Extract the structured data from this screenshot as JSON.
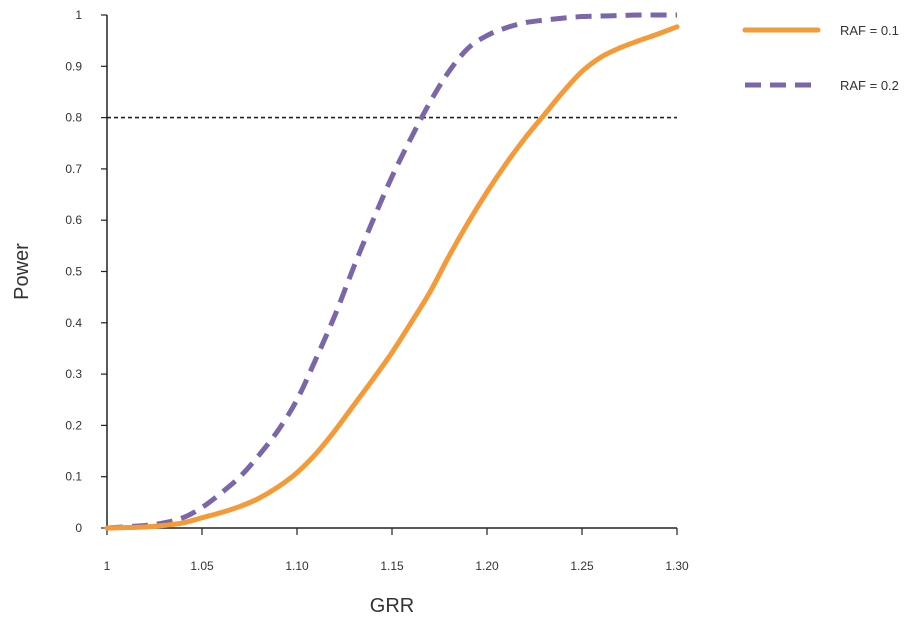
{
  "chart_data": {
    "type": "line",
    "xlabel": "GRR",
    "ylabel": "Power",
    "xlim": [
      1.0,
      1.3
    ],
    "ylim": [
      0,
      1
    ],
    "x_ticks": [
      {
        "value": 1.0,
        "label": "1"
      },
      {
        "value": 1.05,
        "label": "1.05"
      },
      {
        "value": 1.1,
        "label": "1.10"
      },
      {
        "value": 1.15,
        "label": "1.15"
      },
      {
        "value": 1.2,
        "label": "1.20"
      },
      {
        "value": 1.25,
        "label": "1.25"
      },
      {
        "value": 1.3,
        "label": "1.30"
      }
    ],
    "y_ticks": [
      {
        "value": 0,
        "label": "0"
      },
      {
        "value": 0.1,
        "label": "0.1"
      },
      {
        "value": 0.2,
        "label": "0.2"
      },
      {
        "value": 0.3,
        "label": "0.3"
      },
      {
        "value": 0.4,
        "label": "0.4"
      },
      {
        "value": 0.5,
        "label": "0.5"
      },
      {
        "value": 0.6,
        "label": "0.6"
      },
      {
        "value": 0.7,
        "label": "0.7"
      },
      {
        "value": 0.8,
        "label": "0.8"
      },
      {
        "value": 0.9,
        "label": "0.9"
      },
      {
        "value": 1,
        "label": "1"
      }
    ],
    "reference_line": {
      "y": 0.8,
      "style": "dotted",
      "color": "#222222"
    },
    "grid": false,
    "legend_position": "top-right",
    "series": [
      {
        "name": "RAF = 0.1",
        "color": "#F59A38",
        "dash": "solid",
        "x": [
          1.0,
          1.02,
          1.03,
          1.04,
          1.05,
          1.06,
          1.07,
          1.08,
          1.09,
          1.1,
          1.11,
          1.12,
          1.13,
          1.14,
          1.15,
          1.16,
          1.17,
          1.18,
          1.19,
          1.2,
          1.21,
          1.22,
          1.23,
          1.24,
          1.25,
          1.26,
          1.27,
          1.28,
          1.29,
          1.3
        ],
        "y": [
          0.0,
          0.002,
          0.005,
          0.01,
          0.02,
          0.03,
          0.042,
          0.058,
          0.08,
          0.108,
          0.145,
          0.19,
          0.24,
          0.29,
          0.342,
          0.4,
          0.46,
          0.53,
          0.595,
          0.655,
          0.71,
          0.76,
          0.805,
          0.85,
          0.89,
          0.918,
          0.936,
          0.95,
          0.963,
          0.977
        ]
      },
      {
        "name": "RAF = 0.2",
        "color": "#7A66A8",
        "dash": "dashed",
        "x": [
          1.0,
          1.02,
          1.03,
          1.04,
          1.05,
          1.06,
          1.07,
          1.08,
          1.09,
          1.1,
          1.11,
          1.12,
          1.13,
          1.14,
          1.15,
          1.16,
          1.17,
          1.18,
          1.19,
          1.2,
          1.21,
          1.22,
          1.23,
          1.24,
          1.25,
          1.26,
          1.27,
          1.28,
          1.29,
          1.3
        ],
        "y": [
          0.0,
          0.005,
          0.01,
          0.02,
          0.04,
          0.068,
          0.1,
          0.142,
          0.19,
          0.25,
          0.33,
          0.415,
          0.51,
          0.6,
          0.685,
          0.76,
          0.83,
          0.89,
          0.935,
          0.96,
          0.975,
          0.985,
          0.99,
          0.994,
          0.997,
          0.998,
          0.999,
          1.0,
          1.0,
          1.0
        ]
      }
    ]
  }
}
